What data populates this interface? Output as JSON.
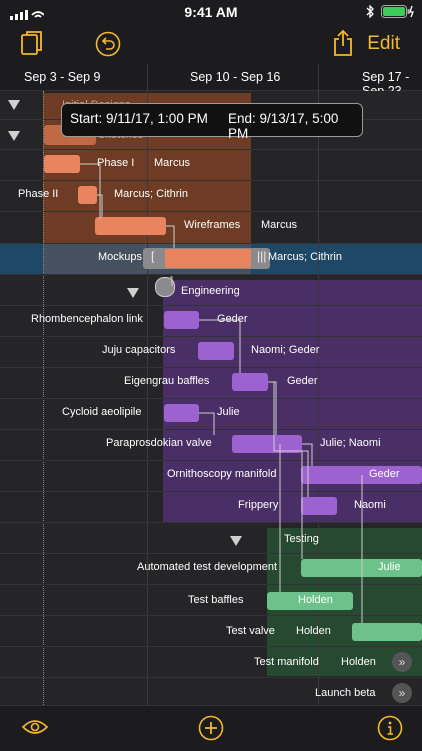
{
  "status": {
    "time": "9:41 AM"
  },
  "toolbar": {
    "edit_label": "Edit"
  },
  "dates": [
    "Sep 3 - Sep 9",
    "Sep 10 - Sep 16",
    "Sep 17 - Sep 23"
  ],
  "tooltip": {
    "start": "Start: 9/11/17, 1:00 PM",
    "end": "End: 9/13/17, 5:00 PM"
  },
  "groups": {
    "design": "Initial Designs",
    "sketches": "Sketches",
    "engineering": "Engineering",
    "testing": "Testing"
  },
  "tasks": [
    {
      "name": "Phase I",
      "assignee": "Marcus"
    },
    {
      "name": "Phase II",
      "assignee": "Marcus; Cithrin"
    },
    {
      "name": "Wireframes",
      "assignee": "Marcus"
    },
    {
      "name": "Mockups",
      "assignee": "Marcus; Cithrin"
    },
    {
      "name": "Rhombencephalon link",
      "assignee": "Geder"
    },
    {
      "name": "Juju capacitors",
      "assignee": "Naomi; Geder"
    },
    {
      "name": "Eigengrau baffles",
      "assignee": "Geder"
    },
    {
      "name": "Cycloid aeolipile",
      "assignee": "Julie"
    },
    {
      "name": "Paraprosdokian valve",
      "assignee": "Julie; Naomi"
    },
    {
      "name": "Ornithoscopy manifold",
      "assignee": "Geder"
    },
    {
      "name": "Frippery",
      "assignee": "Naomi"
    },
    {
      "name": "Automated test development",
      "assignee": "Julie"
    },
    {
      "name": "Test baffles",
      "assignee": "Holden"
    },
    {
      "name": "Test valve",
      "assignee": "Holden"
    },
    {
      "name": "Test manifold",
      "assignee": "Holden"
    },
    {
      "name": "Launch beta",
      "assignee": ""
    }
  ],
  "colors": {
    "design": "#6e3c24",
    "design_bar": "#e8855f",
    "eng": "#4a2e66",
    "eng_bar": "#9c63d0",
    "test": "#26492f",
    "test_bar": "#6cc28a",
    "accent": "#f5b82e",
    "selected": "#1f4766"
  }
}
